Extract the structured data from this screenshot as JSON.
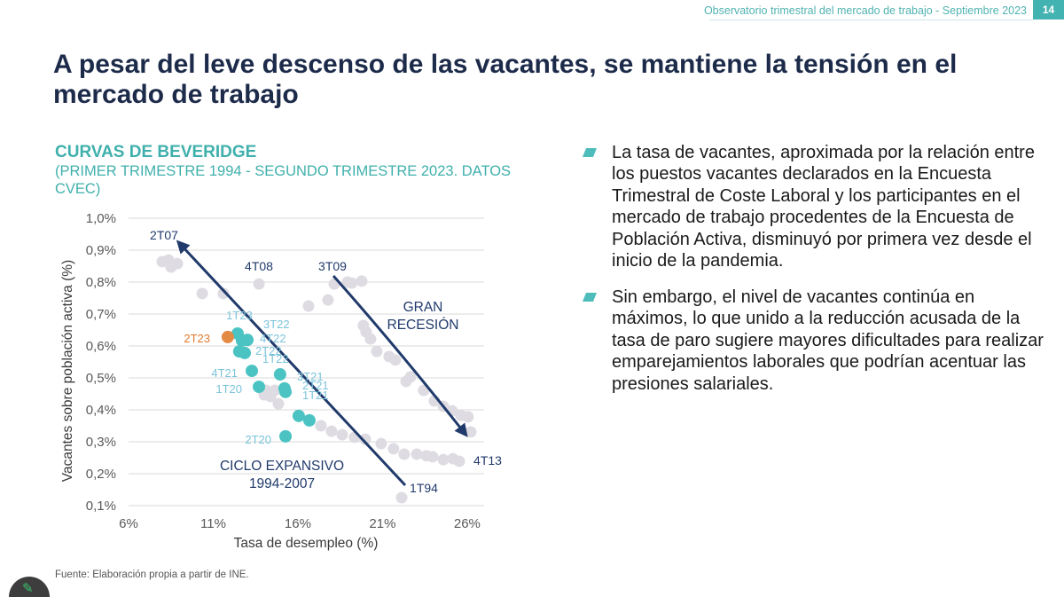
{
  "header": {
    "report_title": "Observatorio trimestral del mercado de trabajo - Septiembre 2023",
    "page_number": "14"
  },
  "slide_title": "A pesar del leve descenso de las vacantes, se mantiene la tensión en el mercado de trabajo",
  "chart_data": {
    "type": "scatter",
    "title": "CURVAS DE BEVERIDGE",
    "subtitle": "(PRIMER TRIMESTRE 1994 - SEGUNDO TRIMESTRE 2023. DATOS CVEC)",
    "xlabel": "Tasa de desempleo (%)",
    "ylabel": "Vacantes sobre población activa (%)",
    "xlim": [
      6,
      27
    ],
    "ylim": [
      0.1,
      1.0
    ],
    "grid": true,
    "x_ticks": [
      {
        "value": 6,
        "label": "6%"
      },
      {
        "value": 11,
        "label": "11%"
      },
      {
        "value": 16,
        "label": "16%"
      },
      {
        "value": 21,
        "label": "21%"
      },
      {
        "value": 26,
        "label": "26%"
      }
    ],
    "y_ticks": [
      {
        "value": 1.0,
        "label": "1,0%"
      },
      {
        "value": 0.9,
        "label": "0,9%"
      },
      {
        "value": 0.8,
        "label": "0,8%"
      },
      {
        "value": 0.7,
        "label": "0,7%"
      },
      {
        "value": 0.6,
        "label": "0,6%"
      },
      {
        "value": 0.5,
        "label": "0,5%"
      },
      {
        "value": 0.4,
        "label": "0,4%"
      },
      {
        "value": 0.3,
        "label": "0,3%"
      },
      {
        "value": 0.2,
        "label": "0,2%"
      },
      {
        "value": 0.1,
        "label": "0,1%"
      }
    ],
    "points_historical": [
      [
        8.36,
        0.869
      ],
      [
        8.51,
        0.847
      ],
      [
        8.88,
        0.858
      ],
      [
        10.35,
        0.764
      ],
      [
        11.6,
        0.764
      ],
      [
        16.63,
        0.725
      ],
      [
        17.78,
        0.744
      ],
      [
        18.93,
        0.8
      ],
      [
        19.19,
        0.797
      ],
      [
        19.77,
        0.803
      ],
      [
        19.87,
        0.664
      ],
      [
        20.03,
        0.644
      ],
      [
        20.29,
        0.622
      ],
      [
        20.66,
        0.583
      ],
      [
        21.39,
        0.567
      ],
      [
        21.76,
        0.556
      ],
      [
        22.39,
        0.489
      ],
      [
        22.65,
        0.503
      ],
      [
        23.43,
        0.461
      ],
      [
        24.06,
        0.428
      ],
      [
        24.59,
        0.411
      ],
      [
        25.11,
        0.397
      ],
      [
        25.63,
        0.383
      ],
      [
        26.05,
        0.378
      ],
      [
        26.21,
        0.331
      ],
      [
        25.16,
        0.247
      ],
      [
        24.59,
        0.244
      ],
      [
        23.96,
        0.253
      ],
      [
        23.59,
        0.256
      ],
      [
        23.02,
        0.261
      ],
      [
        22.28,
        0.261
      ],
      [
        21.65,
        0.278
      ],
      [
        20.92,
        0.294
      ],
      [
        19.98,
        0.308
      ],
      [
        19.35,
        0.314
      ],
      [
        18.62,
        0.322
      ],
      [
        17.99,
        0.333
      ],
      [
        17.36,
        0.35
      ],
      [
        14.12,
        0.461
      ],
      [
        14.38,
        0.442
      ],
      [
        14.01,
        0.447
      ],
      [
        14.85,
        0.419
      ],
      [
        14.64,
        0.461
      ]
    ],
    "points_labeled": [
      {
        "label": "2T07",
        "x": 7.99,
        "y": 0.864
      },
      {
        "label": "4T08",
        "x": 13.7,
        "y": 0.794
      },
      {
        "label": "3T09",
        "x": 18.15,
        "y": 0.794
      },
      {
        "label": "4T13",
        "x": 25.53,
        "y": 0.239
      },
      {
        "label": "1T94",
        "x": 22.13,
        "y": 0.125
      }
    ],
    "points_recent": [
      {
        "label": "1T20",
        "x": 13.7,
        "y": 0.472
      },
      {
        "label": "2T20",
        "x": 15.27,
        "y": 0.317
      },
      {
        "x": 16.05,
        "y": 0.381
      },
      {
        "x": 16.68,
        "y": 0.367
      },
      {
        "label": "1T21",
        "x": 15.27,
        "y": 0.456
      },
      {
        "label": "2T21",
        "x": 15.21,
        "y": 0.467
      },
      {
        "label": "3T21",
        "x": 14.95,
        "y": 0.511
      },
      {
        "label": "4T21",
        "x": 13.28,
        "y": 0.522
      },
      {
        "label": "1T22",
        "x": 12.86,
        "y": 0.578
      },
      {
        "label": "2T22",
        "x": 12.54,
        "y": 0.583
      },
      {
        "label": "3T22",
        "x": 13.02,
        "y": 0.619
      },
      {
        "label": "4T22",
        "x": 12.7,
        "y": 0.617
      },
      {
        "label": "1T23",
        "x": 12.44,
        "y": 0.639
      }
    ],
    "point_highlight": {
      "label": "2T23",
      "x": 11.86,
      "y": 0.628
    },
    "annotations": {
      "gran_recesion": [
        "GRAN",
        "RECESIÓN"
      ],
      "ciclo_expansivo": [
        "CICLO EXPANSIVO",
        "1994-2007"
      ]
    },
    "colors": {
      "historical": "#dedce2",
      "recent": "#4cc3c3",
      "highlight": "#e38a45",
      "annotation": "#203a6b",
      "gridline": "#d9d9d9"
    }
  },
  "bullets": [
    "La tasa de vacantes, aproximada por la relación entre los puestos vacantes declarados en la Encuesta Trimestral de Coste Laboral y los participantes en el mercado de trabajo procedentes de la Encuesta de Población Activa, disminuyó por primera vez desde el inicio de la pandemia.",
    "Sin embargo, el nivel de vacantes continúa en máximos, lo que unido a la reducción acusada de la tasa de paro sugiere mayores dificultades para realizar emparejamientos laborales que podrían acentuar las presiones salariales."
  ],
  "source": "Fuente: Elaboración propia a partir de INE.",
  "edit_button": {
    "icon": "pencil-icon"
  }
}
